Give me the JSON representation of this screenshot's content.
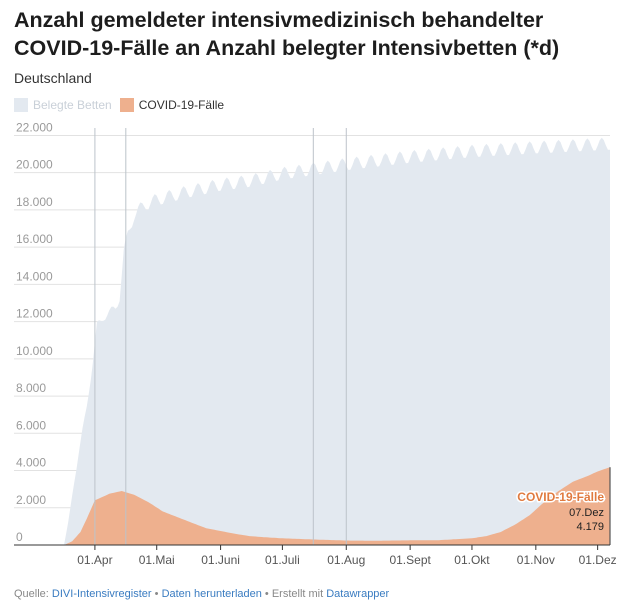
{
  "title": "Anzahl gemeldeter intensivmedizinisch behandelter COVID-19-Fälle an Anzahl belegter Intensivbetten (*d)",
  "subtitle": "Deutschland",
  "legend": [
    {
      "label": "Belegte Betten",
      "color": "#e3e9f0"
    },
    {
      "label": "COVID-19-Fälle",
      "color": "#eeb08e"
    }
  ],
  "footer": {
    "source_prefix": "Quelle:",
    "source_link": "DIVI-Intensivregister",
    "sep1": "•",
    "download_link": "Daten herunterladen",
    "sep2": "• Erstellt mit",
    "tool_link": "Datawrapper"
  },
  "chart_data": {
    "type": "area",
    "title": "Anzahl gemeldeter intensivmedizinisch behandelter COVID-19-Fälle an Anzahl belegter Intensivbetten (*d)",
    "subtitle": "Deutschland",
    "x_domain": [
      "2020-03-17",
      "2020-12-07"
    ],
    "y_domain": [
      0,
      22400
    ],
    "y_ticks": [
      0,
      2000,
      4000,
      6000,
      8000,
      10000,
      12000,
      14000,
      16000,
      18000,
      20000,
      22000
    ],
    "y_tick_labels": [
      "0",
      "2.000",
      "4.000",
      "6.000",
      "8.000",
      "10.000",
      "12.000",
      "14.000",
      "16.000",
      "18.000",
      "20.000",
      "22.000"
    ],
    "x_ticks": [
      {
        "date": "2020-04-01",
        "label": "01.Apr"
      },
      {
        "date": "2020-05-01",
        "label": "01.Mai"
      },
      {
        "date": "2020-06-01",
        "label": "01.Juni"
      },
      {
        "date": "2020-07-01",
        "label": "01.Juli"
      },
      {
        "date": "2020-08-01",
        "label": "01.Aug"
      },
      {
        "date": "2020-09-01",
        "label": "01.Sept"
      },
      {
        "date": "2020-10-01",
        "label": "01.Okt"
      },
      {
        "date": "2020-11-01",
        "label": "01.Nov"
      },
      {
        "date": "2020-12-01",
        "label": "01.Dez"
      }
    ],
    "reference_lines": [
      "2020-04-01",
      "2020-04-16",
      "2020-07-16",
      "2020-08-01"
    ],
    "grid": true,
    "series": [
      {
        "name": "Belegte Betten",
        "color": "#e3e9f0",
        "weekly_dip": 700,
        "points": [
          [
            "2020-03-17",
            0
          ],
          [
            "2020-03-19",
            1200
          ],
          [
            "2020-03-22",
            3500
          ],
          [
            "2020-03-25",
            5600
          ],
          [
            "2020-03-28",
            7600
          ],
          [
            "2020-03-31",
            10000
          ],
          [
            "2020-04-02",
            12000
          ],
          [
            "2020-04-05",
            12500
          ],
          [
            "2020-04-08",
            12700
          ],
          [
            "2020-04-11",
            13000
          ],
          [
            "2020-04-13",
            13600
          ],
          [
            "2020-04-15",
            16000
          ],
          [
            "2020-04-17",
            17000
          ],
          [
            "2020-04-20",
            18100
          ],
          [
            "2020-04-25",
            18600
          ],
          [
            "2020-05-01",
            18900
          ],
          [
            "2020-05-15",
            19300
          ],
          [
            "2020-06-01",
            19700
          ],
          [
            "2020-06-15",
            19900
          ],
          [
            "2020-07-01",
            20300
          ],
          [
            "2020-07-20",
            20600
          ],
          [
            "2020-08-01",
            20800
          ],
          [
            "2020-09-01",
            21200
          ],
          [
            "2020-10-01",
            21500
          ],
          [
            "2020-11-01",
            21700
          ],
          [
            "2020-12-07",
            21900
          ]
        ]
      },
      {
        "name": "COVID-19-Fälle",
        "color": "#eeb08e",
        "points": [
          [
            "2020-03-17",
            0
          ],
          [
            "2020-03-21",
            200
          ],
          [
            "2020-03-25",
            700
          ],
          [
            "2020-03-28",
            1400
          ],
          [
            "2020-04-01",
            2400
          ],
          [
            "2020-04-08",
            2750
          ],
          [
            "2020-04-14",
            2900
          ],
          [
            "2020-04-20",
            2700
          ],
          [
            "2020-04-27",
            2300
          ],
          [
            "2020-05-04",
            1800
          ],
          [
            "2020-05-11",
            1500
          ],
          [
            "2020-05-18",
            1200
          ],
          [
            "2020-05-25",
            900
          ],
          [
            "2020-06-01",
            750
          ],
          [
            "2020-06-08",
            600
          ],
          [
            "2020-06-15",
            480
          ],
          [
            "2020-06-22",
            420
          ],
          [
            "2020-07-01",
            360
          ],
          [
            "2020-07-15",
            300
          ],
          [
            "2020-08-01",
            240
          ],
          [
            "2020-08-15",
            230
          ],
          [
            "2020-09-01",
            250
          ],
          [
            "2020-09-15",
            260
          ],
          [
            "2020-10-01",
            360
          ],
          [
            "2020-10-08",
            480
          ],
          [
            "2020-10-15",
            700
          ],
          [
            "2020-10-22",
            1100
          ],
          [
            "2020-10-29",
            1600
          ],
          [
            "2020-11-05",
            2300
          ],
          [
            "2020-11-12",
            2900
          ],
          [
            "2020-11-19",
            3400
          ],
          [
            "2020-11-26",
            3700
          ],
          [
            "2020-12-01",
            3950
          ],
          [
            "2020-12-07",
            4179
          ]
        ]
      }
    ],
    "annotation": {
      "series": "COVID-19-Fälle",
      "label": "COVID-19-Fälle",
      "date_label": "07.Dez",
      "value_label": "4.179"
    }
  }
}
